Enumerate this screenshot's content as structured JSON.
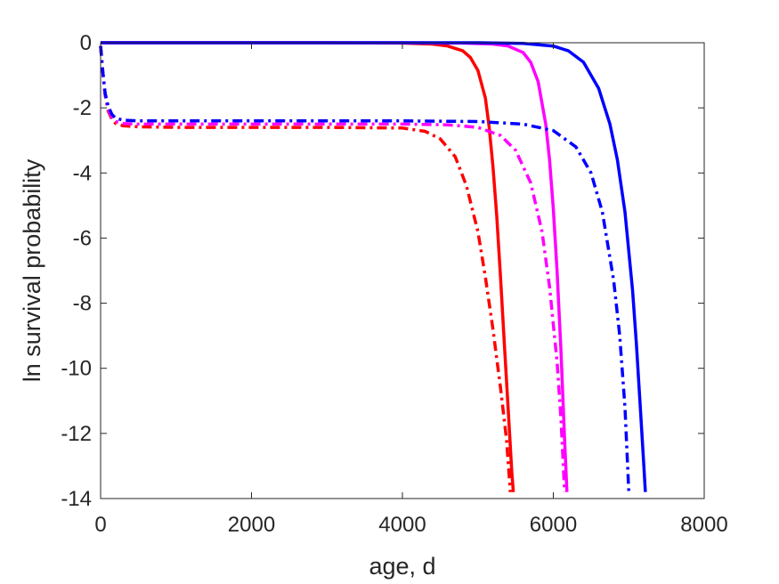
{
  "chart_data": {
    "type": "line",
    "title": "",
    "xlabel": "age, d",
    "ylabel": "ln survival probability",
    "xlim": [
      0,
      8000
    ],
    "ylim": [
      -14,
      0
    ],
    "xticks": [
      0,
      2000,
      4000,
      6000,
      8000
    ],
    "yticks": [
      0,
      -2,
      -4,
      -6,
      -8,
      -10,
      -12,
      -14
    ],
    "grid": false,
    "legend": "none",
    "series": [
      {
        "color": "#ff0000",
        "style": "solid",
        "points": [
          [
            0,
            0
          ],
          [
            1000,
            0
          ],
          [
            2000,
            0
          ],
          [
            3000,
            0
          ],
          [
            4000,
            -0.01
          ],
          [
            4400,
            -0.04
          ],
          [
            4600,
            -0.1
          ],
          [
            4800,
            -0.25
          ],
          [
            4900,
            -0.45
          ],
          [
            5000,
            -0.85
          ],
          [
            5100,
            -1.7
          ],
          [
            5150,
            -2.6
          ],
          [
            5200,
            -3.8
          ],
          [
            5250,
            -5.3
          ],
          [
            5300,
            -7.2
          ],
          [
            5350,
            -9.2
          ],
          [
            5400,
            -11.2
          ],
          [
            5450,
            -13.2
          ],
          [
            5470,
            -13.8
          ]
        ]
      },
      {
        "color": "#ff00ff",
        "style": "solid",
        "points": [
          [
            0,
            0
          ],
          [
            1000,
            0
          ],
          [
            2000,
            0
          ],
          [
            3000,
            0
          ],
          [
            4000,
            0
          ],
          [
            4800,
            -0.01
          ],
          [
            5200,
            -0.04
          ],
          [
            5400,
            -0.1
          ],
          [
            5600,
            -0.3
          ],
          [
            5700,
            -0.6
          ],
          [
            5800,
            -1.2
          ],
          [
            5900,
            -2.5
          ],
          [
            5950,
            -3.6
          ],
          [
            6000,
            -5.1
          ],
          [
            6050,
            -7.0
          ],
          [
            6100,
            -9.4
          ],
          [
            6150,
            -12.2
          ],
          [
            6180,
            -13.8
          ]
        ]
      },
      {
        "color": "#0000ff",
        "style": "solid",
        "points": [
          [
            0,
            0
          ],
          [
            1000,
            0
          ],
          [
            2000,
            0
          ],
          [
            3000,
            0
          ],
          [
            4000,
            0
          ],
          [
            5000,
            0
          ],
          [
            5600,
            -0.02
          ],
          [
            6000,
            -0.1
          ],
          [
            6200,
            -0.25
          ],
          [
            6400,
            -0.6
          ],
          [
            6600,
            -1.4
          ],
          [
            6750,
            -2.5
          ],
          [
            6850,
            -3.6
          ],
          [
            6950,
            -5.2
          ],
          [
            7050,
            -7.6
          ],
          [
            7100,
            -9.2
          ],
          [
            7150,
            -11.1
          ],
          [
            7200,
            -13.0
          ],
          [
            7220,
            -13.8
          ]
        ]
      },
      {
        "color": "#ff0000",
        "style": "dashdot",
        "points": [
          [
            0,
            -0.1
          ],
          [
            30,
            -0.9
          ],
          [
            60,
            -1.6
          ],
          [
            100,
            -2.1
          ],
          [
            150,
            -2.35
          ],
          [
            200,
            -2.48
          ],
          [
            300,
            -2.55
          ],
          [
            500,
            -2.58
          ],
          [
            1000,
            -2.6
          ],
          [
            2000,
            -2.6
          ],
          [
            3000,
            -2.6
          ],
          [
            4000,
            -2.62
          ],
          [
            4300,
            -2.72
          ],
          [
            4500,
            -2.95
          ],
          [
            4700,
            -3.5
          ],
          [
            4850,
            -4.4
          ],
          [
            5000,
            -5.8
          ],
          [
            5100,
            -7.2
          ],
          [
            5200,
            -8.8
          ],
          [
            5300,
            -10.6
          ],
          [
            5380,
            -12.2
          ],
          [
            5430,
            -13.8
          ]
        ]
      },
      {
        "color": "#ff00ff",
        "style": "dashdot",
        "points": [
          [
            0,
            -0.1
          ],
          [
            30,
            -0.9
          ],
          [
            60,
            -1.6
          ],
          [
            100,
            -2.05
          ],
          [
            150,
            -2.3
          ],
          [
            200,
            -2.42
          ],
          [
            300,
            -2.48
          ],
          [
            500,
            -2.5
          ],
          [
            1000,
            -2.5
          ],
          [
            2000,
            -2.5
          ],
          [
            3000,
            -2.5
          ],
          [
            4000,
            -2.5
          ],
          [
            4600,
            -2.52
          ],
          [
            5000,
            -2.6
          ],
          [
            5300,
            -2.85
          ],
          [
            5500,
            -3.3
          ],
          [
            5700,
            -4.3
          ],
          [
            5850,
            -5.8
          ],
          [
            5950,
            -7.5
          ],
          [
            6050,
            -9.8
          ],
          [
            6100,
            -11.5
          ],
          [
            6150,
            -13.8
          ]
        ]
      },
      {
        "color": "#0000ff",
        "style": "dashdot",
        "points": [
          [
            0,
            -0.1
          ],
          [
            30,
            -0.9
          ],
          [
            60,
            -1.55
          ],
          [
            100,
            -1.95
          ],
          [
            150,
            -2.2
          ],
          [
            200,
            -2.32
          ],
          [
            300,
            -2.38
          ],
          [
            500,
            -2.4
          ],
          [
            1000,
            -2.4
          ],
          [
            2000,
            -2.4
          ],
          [
            3000,
            -2.4
          ],
          [
            4000,
            -2.4
          ],
          [
            5000,
            -2.42
          ],
          [
            5600,
            -2.5
          ],
          [
            6000,
            -2.7
          ],
          [
            6300,
            -3.2
          ],
          [
            6500,
            -4.0
          ],
          [
            6650,
            -5.2
          ],
          [
            6800,
            -7.3
          ],
          [
            6880,
            -9.0
          ],
          [
            6950,
            -11.2
          ],
          [
            7000,
            -13.8
          ]
        ]
      }
    ]
  }
}
